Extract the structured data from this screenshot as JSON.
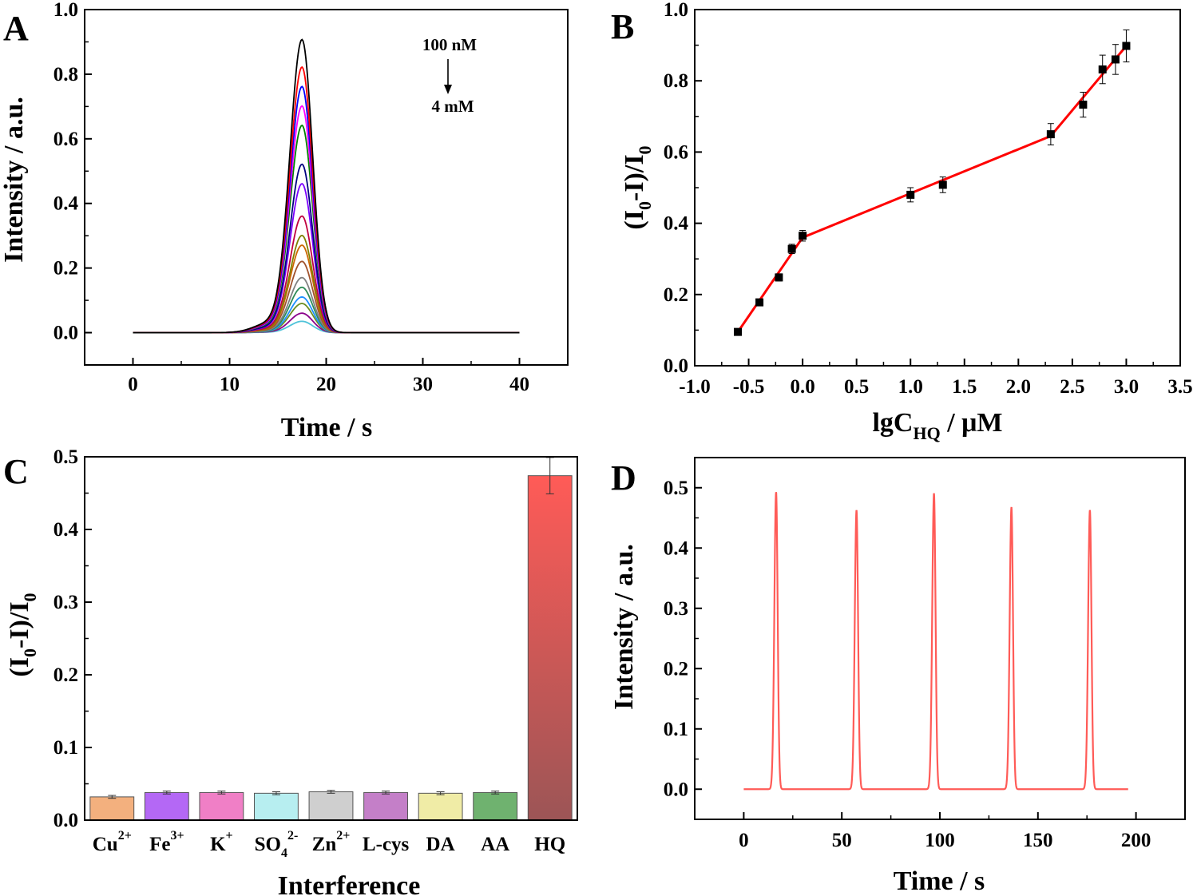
{
  "panels": {
    "A": {
      "letter": "A"
    },
    "B": {
      "letter": "B"
    },
    "C": {
      "letter": "C"
    },
    "D": {
      "letter": "D"
    }
  },
  "chart_data": [
    {
      "panel": "A",
      "type": "line",
      "xlabel": "Time / s",
      "ylabel": "Intensity / a.u.",
      "xlim": [
        -5,
        45
      ],
      "ylim": [
        -0.1,
        1.0
      ],
      "xticks": [
        0,
        10,
        20,
        30,
        40
      ],
      "yticks": [
        0.0,
        0.2,
        0.4,
        0.6,
        0.8,
        1.0
      ],
      "ytick_labels": [
        "0.0",
        "0.2",
        "0.4",
        "0.6",
        "0.8",
        "1.0"
      ],
      "annotation_top": "100 nM",
      "annotation_bottom": "4 mM",
      "peak_time": 17.5,
      "baseline_range": [
        0,
        40
      ],
      "series": [
        {
          "peak": 0.905,
          "color": "#000000"
        },
        {
          "peak": 0.82,
          "color": "#ff0000"
        },
        {
          "peak": 0.76,
          "color": "#0000ff"
        },
        {
          "peak": 0.7,
          "color": "#ff00ff"
        },
        {
          "peak": 0.64,
          "color": "#008000"
        },
        {
          "peak": 0.52,
          "color": "#000080"
        },
        {
          "peak": 0.46,
          "color": "#7b00ff"
        },
        {
          "peak": 0.36,
          "color": "#c00040"
        },
        {
          "peak": 0.3,
          "color": "#808000"
        },
        {
          "peak": 0.27,
          "color": "#cc6600"
        },
        {
          "peak": 0.22,
          "color": "#a0522d"
        },
        {
          "peak": 0.17,
          "color": "#808080"
        },
        {
          "peak": 0.14,
          "color": "#2e8b57"
        },
        {
          "peak": 0.11,
          "color": "#1e90ff"
        },
        {
          "peak": 0.09,
          "color": "#6b8e23"
        },
        {
          "peak": 0.06,
          "color": "#8b008b"
        },
        {
          "peak": 0.035,
          "color": "#4fc3d9"
        }
      ]
    },
    {
      "panel": "B",
      "type": "scatter",
      "xlabel": "lgC",
      "xlabel_sub": "HQ",
      "xlabel_tail": " / μM",
      "ylabel_parts": [
        "(I",
        "0",
        "-I)/I",
        "0"
      ],
      "xlim": [
        -1.0,
        3.5
      ],
      "ylim": [
        0.0,
        1.0
      ],
      "xticks": [
        -1.0,
        -0.5,
        0.0,
        0.5,
        1.0,
        1.5,
        2.0,
        2.5,
        3.0,
        3.5
      ],
      "xtick_labels": [
        "-1.0",
        "-0.5",
        "0.0",
        "0.5",
        "1.0",
        "1.5",
        "2.0",
        "2.5",
        "3.0",
        "3.5"
      ],
      "yticks": [
        0.0,
        0.2,
        0.4,
        0.6,
        0.8,
        1.0
      ],
      "ytick_labels": [
        "0.0",
        "0.2",
        "0.4",
        "0.6",
        "0.8",
        "1.0"
      ],
      "points": [
        {
          "x": -0.6,
          "y": 0.095,
          "err": 0.006
        },
        {
          "x": -0.4,
          "y": 0.178,
          "err": 0.008
        },
        {
          "x": -0.22,
          "y": 0.248,
          "err": 0.01
        },
        {
          "x": -0.1,
          "y": 0.328,
          "err": 0.013
        },
        {
          "x": 0.0,
          "y": 0.365,
          "err": 0.015
        },
        {
          "x": 1.0,
          "y": 0.48,
          "err": 0.02
        },
        {
          "x": 1.3,
          "y": 0.508,
          "err": 0.022
        },
        {
          "x": 2.3,
          "y": 0.65,
          "err": 0.03
        },
        {
          "x": 2.6,
          "y": 0.733,
          "err": 0.035
        },
        {
          "x": 2.78,
          "y": 0.832,
          "err": 0.04
        },
        {
          "x": 2.9,
          "y": 0.86,
          "err": 0.042
        },
        {
          "x": 3.0,
          "y": 0.898,
          "err": 0.045
        }
      ],
      "fit_lines": [
        {
          "x": [
            -0.6,
            0.0
          ],
          "y": [
            0.095,
            0.36
          ]
        },
        {
          "x": [
            0.0,
            2.3
          ],
          "y": [
            0.36,
            0.645
          ]
        },
        {
          "x": [
            2.3,
            3.0
          ],
          "y": [
            0.645,
            0.898
          ]
        }
      ],
      "fit_color": "#ff0000"
    },
    {
      "panel": "C",
      "type": "bar",
      "xlabel": "Interference",
      "ylabel_parts": [
        "(I",
        "0",
        "-I)/I",
        "0"
      ],
      "ylim": [
        0.0,
        0.5
      ],
      "yticks": [
        0.0,
        0.1,
        0.2,
        0.3,
        0.4,
        0.5
      ],
      "ytick_labels": [
        "0.0",
        "0.1",
        "0.2",
        "0.3",
        "0.4",
        "0.5"
      ],
      "categories": [
        {
          "base": "Cu",
          "sub": "",
          "sup": "2+"
        },
        {
          "base": "Fe",
          "sub": "",
          "sup": "3+"
        },
        {
          "base": "K",
          "sub": "",
          "sup": "+"
        },
        {
          "base": "SO",
          "sub": "4",
          "sup": "2-"
        },
        {
          "base": "Zn",
          "sub": "",
          "sup": "2+"
        },
        {
          "base": "L-cys",
          "sub": "",
          "sup": ""
        },
        {
          "base": "DA",
          "sub": "",
          "sup": ""
        },
        {
          "base": "AA",
          "sub": "",
          "sup": ""
        },
        {
          "base": "HQ",
          "sub": "",
          "sup": ""
        }
      ],
      "values": [
        0.032,
        0.038,
        0.038,
        0.037,
        0.039,
        0.038,
        0.037,
        0.038,
        0.474
      ],
      "errors": [
        0.002,
        0.002,
        0.002,
        0.002,
        0.002,
        0.002,
        0.002,
        0.002,
        0.025
      ],
      "colors": [
        "#f3b07e",
        "#b468f5",
        "#f07fc6",
        "#b7eef0",
        "#cfcfcf",
        "#c47fc8",
        "#f0eca6",
        "#6fb26f",
        "#ff5b57"
      ]
    },
    {
      "panel": "D",
      "type": "line",
      "xlabel": "Time / s",
      "ylabel": "Intensity / a.u.",
      "xlim": [
        -25,
        225
      ],
      "ylim": [
        -0.05,
        0.55
      ],
      "xticks": [
        0,
        50,
        100,
        150,
        200
      ],
      "yticks": [
        0.0,
        0.1,
        0.2,
        0.3,
        0.4,
        0.5
      ],
      "ytick_labels": [
        "0.0",
        "0.1",
        "0.2",
        "0.3",
        "0.4",
        "0.5"
      ],
      "baseline_range": [
        0,
        196
      ],
      "color": "#ff5b57",
      "peaks": [
        {
          "t": 16.5,
          "height": 0.493
        },
        {
          "t": 57.5,
          "height": 0.463
        },
        {
          "t": 97,
          "height": 0.491
        },
        {
          "t": 136.5,
          "height": 0.468
        },
        {
          "t": 176.5,
          "height": 0.463
        }
      ]
    }
  ]
}
